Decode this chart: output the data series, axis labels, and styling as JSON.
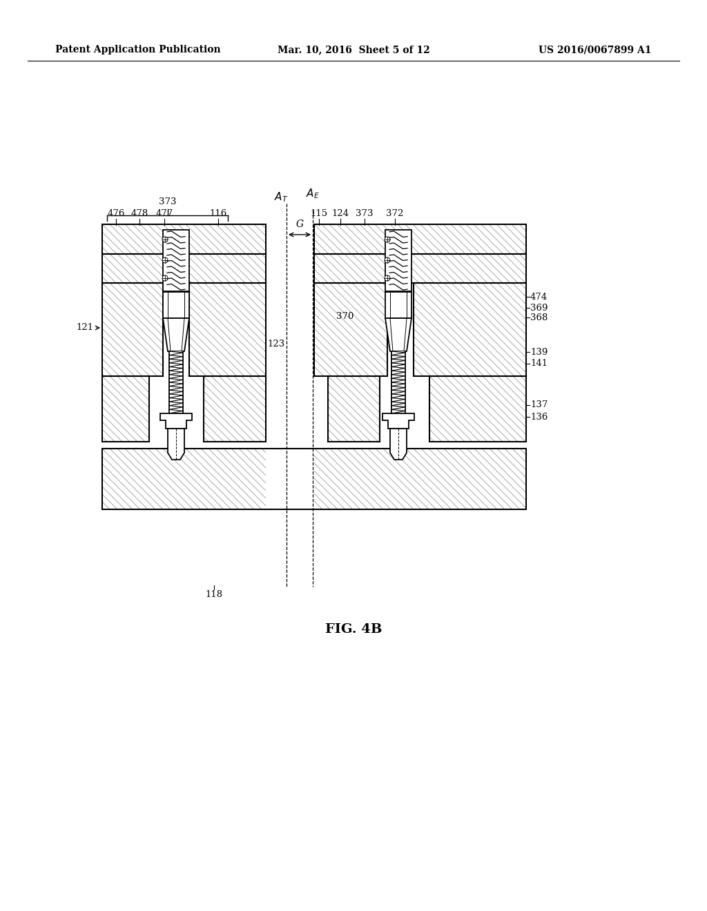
{
  "bg_color": "#ffffff",
  "header_left": "Patent Application Publication",
  "header_mid": "Mar. 10, 2016  Sheet 5 of 12",
  "header_right": "US 2016/0067899 A1",
  "figure_caption": "FIG. 4B",
  "hatch_color": "#888888",
  "hatch_step": 11,
  "lw_border": 1.5,
  "lw_thin": 0.8,
  "font_size_header": 10,
  "font_size_label": 9.5,
  "font_size_caption": 14,
  "font_size_axis": 11
}
